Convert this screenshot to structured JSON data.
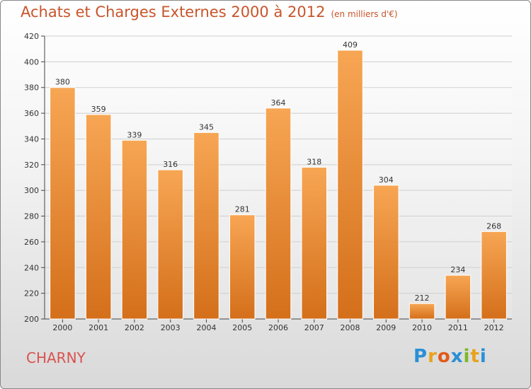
{
  "chart_data": {
    "type": "bar",
    "title": "Achats et Charges Externes 2000 à 2012",
    "subtitle": "(en milliers d'€)",
    "categories": [
      "2000",
      "2001",
      "2002",
      "2003",
      "2004",
      "2005",
      "2006",
      "2007",
      "2008",
      "2009",
      "2010",
      "2011",
      "2012"
    ],
    "values": [
      380,
      359,
      339,
      316,
      345,
      281,
      364,
      318,
      409,
      304,
      212,
      234,
      268
    ],
    "ylim": [
      200,
      420
    ],
    "yticks": [
      200,
      220,
      240,
      260,
      280,
      300,
      320,
      340,
      360,
      380,
      400,
      420
    ],
    "grid": true,
    "bar_color_top": "#f7a654",
    "bar_color_bottom": "#d46f1a"
  },
  "location": "CHARNY",
  "logo": {
    "text": "Proxiti",
    "letters": [
      "P",
      "r",
      "o",
      "x",
      "i",
      "t",
      "i"
    ],
    "colors": [
      "#2a8fd6",
      "#e8a21c",
      "#e05a1c",
      "#2a8fd6",
      "#7bb928",
      "#e8a21c",
      "#2a8fd6"
    ]
  }
}
